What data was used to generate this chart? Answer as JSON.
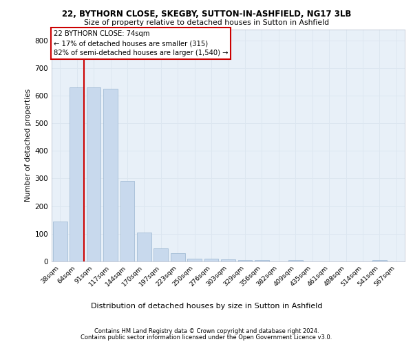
{
  "title1": "22, BYTHORN CLOSE, SKEGBY, SUTTON-IN-ASHFIELD, NG17 3LB",
  "title2": "Size of property relative to detached houses in Sutton in Ashfield",
  "xlabel": "Distribution of detached houses by size in Sutton in Ashfield",
  "ylabel": "Number of detached properties",
  "footer1": "Contains HM Land Registry data © Crown copyright and database right 2024.",
  "footer2": "Contains public sector information licensed under the Open Government Licence v3.0.",
  "annotation_line1": "22 BYTHORN CLOSE: 74sqm",
  "annotation_line2": "← 17% of detached houses are smaller (315)",
  "annotation_line3": "82% of semi-detached houses are larger (1,540) →",
  "bar_color": "#c8d9ed",
  "bar_edge_color": "#9ab5d0",
  "highlight_line_color": "#cc0000",
  "annotation_box_edgecolor": "#cc0000",
  "categories": [
    "38sqm",
    "64sqm",
    "91sqm",
    "117sqm",
    "144sqm",
    "170sqm",
    "197sqm",
    "223sqm",
    "250sqm",
    "276sqm",
    "303sqm",
    "329sqm",
    "356sqm",
    "382sqm",
    "409sqm",
    "435sqm",
    "461sqm",
    "488sqm",
    "514sqm",
    "541sqm",
    "567sqm"
  ],
  "values": [
    145,
    630,
    630,
    625,
    290,
    105,
    48,
    30,
    10,
    10,
    8,
    5,
    5,
    0,
    5,
    0,
    0,
    0,
    0,
    6,
    0
  ],
  "ylim": [
    0,
    840
  ],
  "yticks": [
    0,
    100,
    200,
    300,
    400,
    500,
    600,
    700,
    800
  ],
  "highlight_bar_index": 1,
  "grid_color": "#dce6f0",
  "bg_color": "#e8f0f8",
  "fig_bg_color": "#ffffff"
}
